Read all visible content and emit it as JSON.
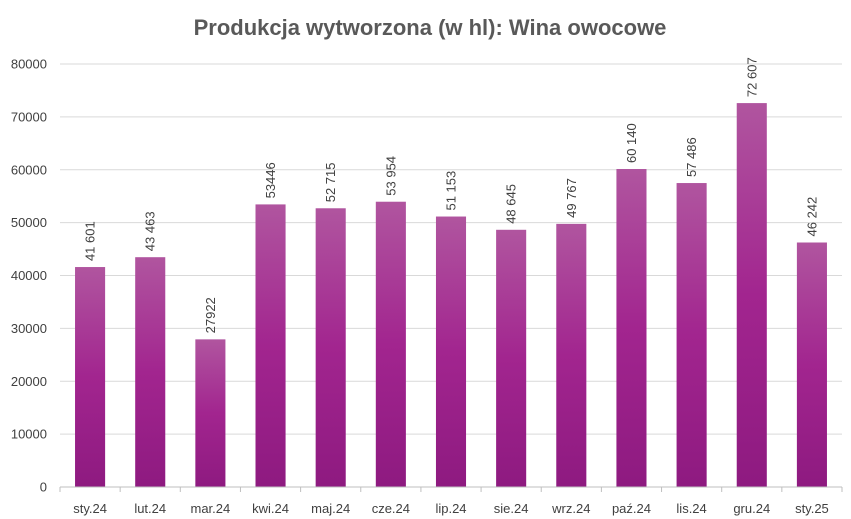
{
  "chart_data": {
    "type": "bar",
    "title": "Produkcja wytworzona (w hl): Wina owocowe",
    "xlabel": "",
    "ylabel": "",
    "categories": [
      "sty.24",
      "lut.24",
      "mar.24",
      "kwi.24",
      "maj.24",
      "cze.24",
      "lip.24",
      "sie.24",
      "wrz.24",
      "paź.24",
      "lis.24",
      "gru.24",
      "sty.25"
    ],
    "values": [
      41601,
      43463,
      27922,
      53446,
      52715,
      53954,
      51153,
      48645,
      49767,
      60140,
      57486,
      72607,
      46242
    ],
    "data_labels": [
      "41 601",
      "43 463",
      "27922",
      "53446",
      "52 715",
      "53 954",
      "51 153",
      "48 645",
      "49 767",
      "60 140",
      "57 486",
      "72 607",
      "46 242"
    ],
    "ylim": [
      0,
      80000
    ],
    "yticks": [
      0,
      10000,
      20000,
      30000,
      40000,
      50000,
      60000,
      70000,
      80000
    ],
    "ytick_labels": [
      "0",
      "10000",
      "20000",
      "30000",
      "40000",
      "50000",
      "60000",
      "70000",
      "80000"
    ],
    "grid": true,
    "legend": "none",
    "bar_color_top": "#b0559f",
    "bar_color_bottom": "#8e1a80"
  }
}
